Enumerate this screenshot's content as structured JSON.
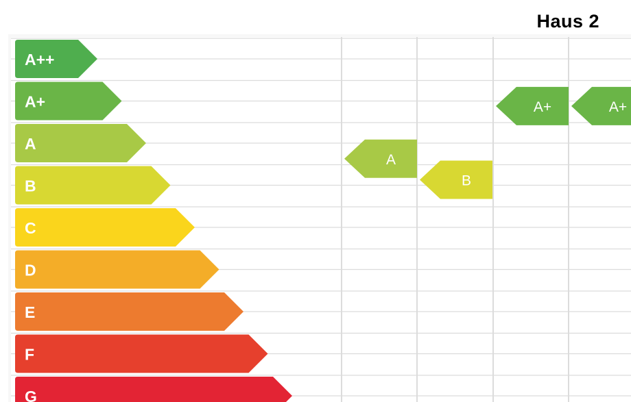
{
  "title": "Haus 2",
  "classes": [
    {
      "label": "A++",
      "color": "#4fae4e"
    },
    {
      "label": "A+",
      "color": "#6ab547"
    },
    {
      "label": "A",
      "color": "#a8c946"
    },
    {
      "label": "B",
      "color": "#d8d832"
    },
    {
      "label": "C",
      "color": "#fad51c"
    },
    {
      "label": "D",
      "color": "#f4ad28"
    },
    {
      "label": "E",
      "color": "#ed7b2f"
    },
    {
      "label": "F",
      "color": "#e6402d"
    },
    {
      "label": "G",
      "color": "#e32434"
    }
  ],
  "ratings": [
    {
      "label": "A",
      "class_index": 2,
      "column": 0,
      "row_offset": 0.5,
      "color": "#a8c946"
    },
    {
      "label": "B",
      "class_index": 3,
      "column": 1,
      "row_offset": 0.0,
      "color": "#d8d832"
    },
    {
      "label": "A+",
      "class_index": 1,
      "column": 2,
      "row_offset": 0.25,
      "color": "#6ab547"
    },
    {
      "label": "A+",
      "class_index": 1,
      "column": 3,
      "row_offset": 0.25,
      "color": "#6ab547"
    }
  ],
  "colors": {
    "grid": "#dcdcdc",
    "frame": "#e6e6e6",
    "label_text": "#ffffff"
  }
}
